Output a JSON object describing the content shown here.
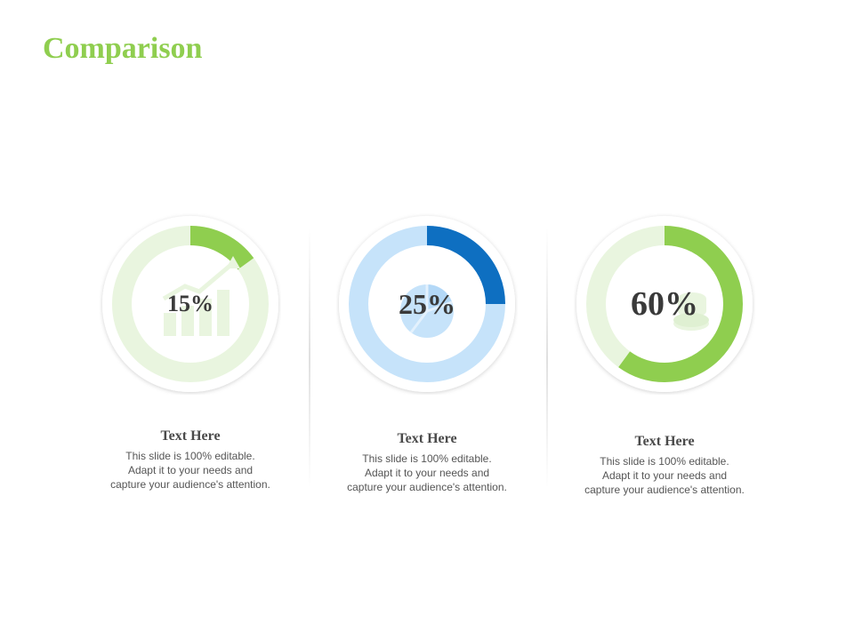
{
  "title": "Comparison",
  "colors": {
    "title": "#8fce4f",
    "green": "#8fce4f",
    "green_track": "#e9f5df",
    "blue": "#0e6fc1",
    "blue_track": "#c6e3fa"
  },
  "chart_data": [
    {
      "type": "pie",
      "value": 15,
      "label": "15%",
      "color": "#8fce4f",
      "track_color": "#e9f5df",
      "icon": "bar-chart-growth-icon",
      "card": {
        "title": "Text Here",
        "lines": [
          "This slide is 100% editable.",
          "Adapt it to your needs and",
          "capture your audience's attention."
        ]
      }
    },
    {
      "type": "pie",
      "value": 25,
      "label": "25%",
      "color": "#0e6fc1",
      "track_color": "#c6e3fa",
      "icon": "pie-chart-icon",
      "card": {
        "title": "Text Here",
        "lines": [
          "This slide is 100% editable.",
          "Adapt it to your needs and",
          "capture your audience's attention."
        ]
      }
    },
    {
      "type": "pie",
      "value": 60,
      "label": "60%",
      "color": "#8fce4f",
      "track_color": "#e9f5df",
      "icon": "coins-icon",
      "card": {
        "title": "Text Here",
        "lines": [
          "This slide is 100% editable.",
          "Adapt it to your needs and",
          "capture your audience's attention."
        ]
      }
    }
  ]
}
